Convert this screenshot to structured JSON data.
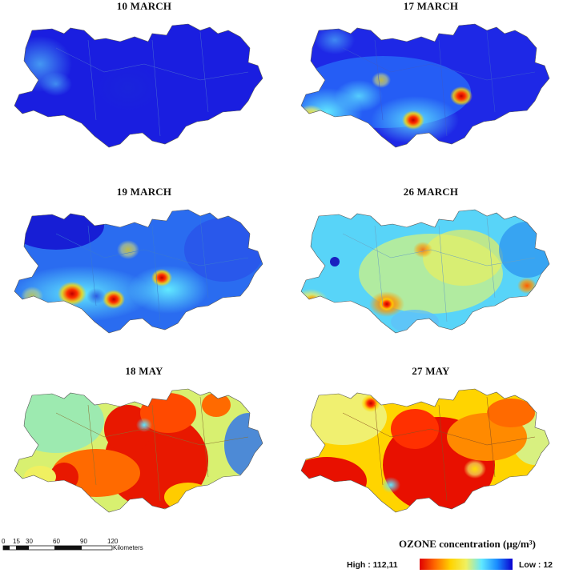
{
  "panels": [
    {
      "title": "10 MARCH",
      "palette": "p1"
    },
    {
      "title": "17 MARCH",
      "palette": "p2"
    },
    {
      "title": "19 MARCH",
      "palette": "p3"
    },
    {
      "title": "26 MARCH",
      "palette": "p4"
    },
    {
      "title": "18 MAY",
      "palette": "p5"
    },
    {
      "title": "27 MAY",
      "palette": "p6"
    }
  ],
  "scale_bar": {
    "ticks": [
      "0",
      "15",
      "30",
      "60",
      "90",
      "120"
    ],
    "unit": "Kilometers"
  },
  "legend": {
    "title": "OZONE concentration (µg/m³)",
    "high_label": "High : 112,11",
    "low_label": "Low : 12"
  },
  "colors": {
    "high": "#e00000",
    "mid": "#ffd400",
    "light": "#60e8ff",
    "low": "#0a00d0"
  }
}
